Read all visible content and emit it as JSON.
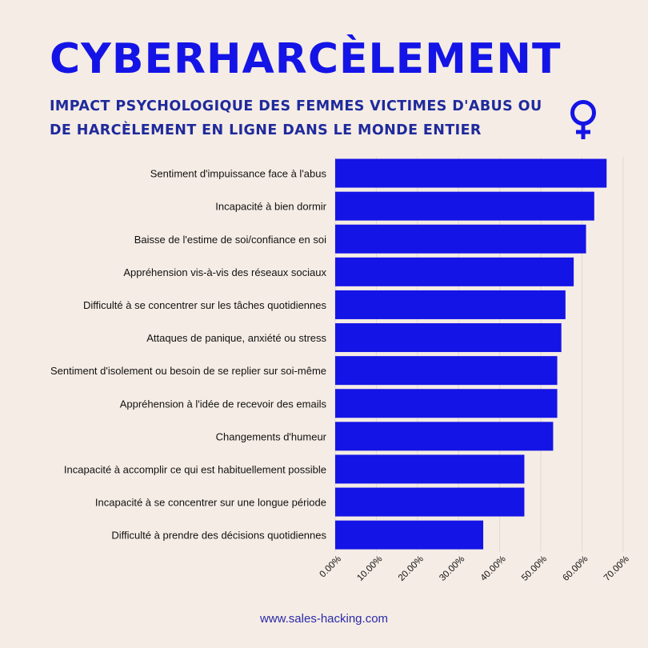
{
  "header": {
    "title": "CYBERHARCÈLEMENT",
    "subtitle": "IMPACT PSYCHOLOGIQUE DES FEMMES VICTIMES D'ABUS OU DE HARCÈLEMENT EN LIGNE DANS LE MONDE ENTIER",
    "icon": "female-symbol-icon"
  },
  "colors": {
    "bar": "#1414e6",
    "title": "#1414e6",
    "subtitle": "#1f2a9c",
    "background": "#f5ece5"
  },
  "chart_data": {
    "type": "bar",
    "orientation": "horizontal",
    "categories": [
      "Sentiment d'impuissance face à l'abus",
      "Incapacité à bien dormir",
      "Baisse de l'estime de soi/confiance en soi",
      "Appréhension vis-à-vis des réseaux sociaux",
      "Difficulté à se concentrer sur les tâches quotidiennes",
      "Attaques de panique, anxiété ou stress",
      "Sentiment d'isolement ou besoin de se replier sur soi-même",
      "Appréhension à l'idée de recevoir des emails",
      "Changements d'humeur",
      "Incapacité à accomplir ce qui est habituellement possible",
      "Incapacité à se concentrer sur une longue période",
      "Difficulté à prendre des décisions quotidiennes"
    ],
    "values": [
      66,
      63,
      61,
      58,
      56,
      55,
      54,
      54,
      53,
      46,
      46,
      36
    ],
    "xlim": [
      0,
      70
    ],
    "ticks": [
      0,
      10,
      20,
      30,
      40,
      50,
      60,
      70
    ],
    "tick_labels": [
      "0.00%",
      "10.00%",
      "20.00%",
      "30.00%",
      "40.00%",
      "50.00%",
      "60.00%",
      "70.00%"
    ],
    "grid": "vertical"
  },
  "footer": {
    "source": "www.sales-hacking.com"
  }
}
